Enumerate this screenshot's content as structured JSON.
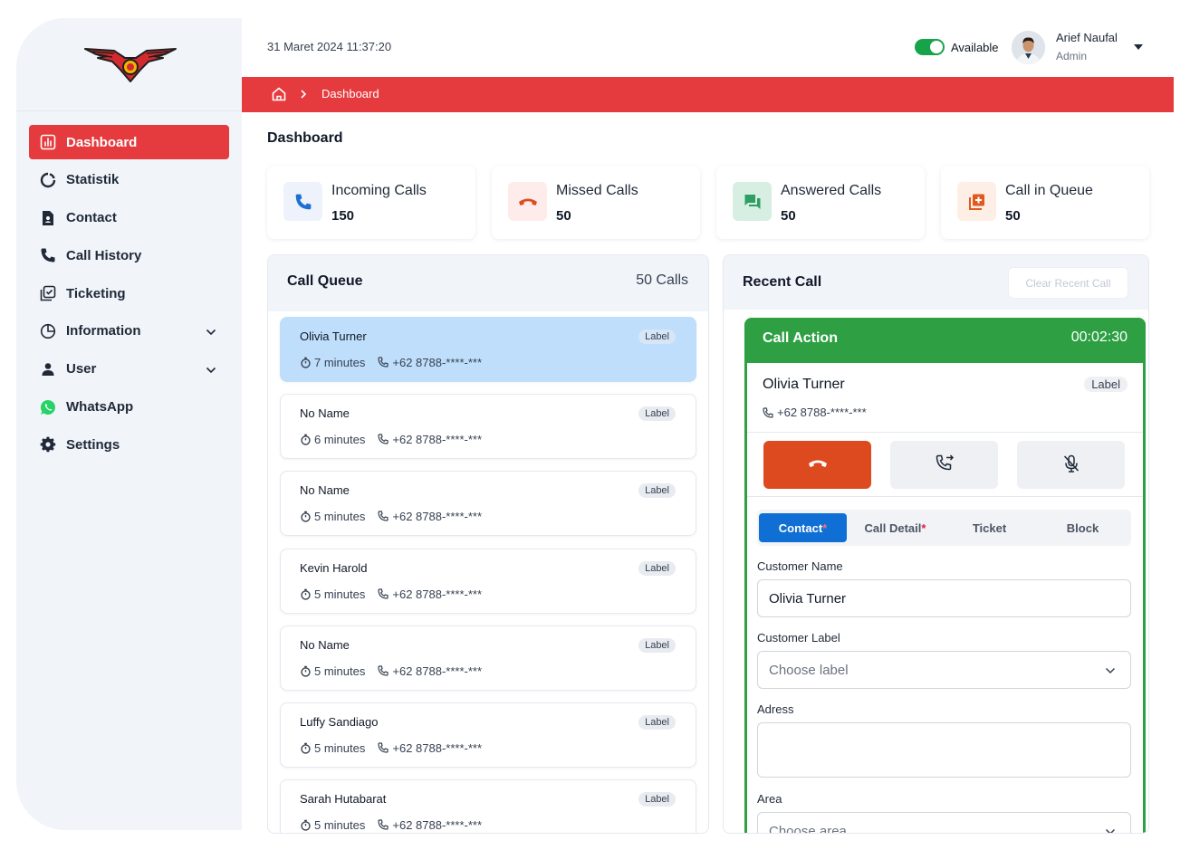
{
  "header": {
    "datetime": "31 Maret 2024 11:37:20",
    "status_label": "Available",
    "user_name": "Arief Naufal",
    "user_role": "Admin"
  },
  "sidebar": {
    "items": [
      {
        "label": "Dashboard",
        "icon": "dashboard-chart-icon",
        "active": true
      },
      {
        "label": "Statistik",
        "icon": "circle-chart-icon"
      },
      {
        "label": "Contact",
        "icon": "contact-document-icon"
      },
      {
        "label": "Call History",
        "icon": "phone-icon"
      },
      {
        "label": "Ticketing",
        "icon": "ticket-check-icon"
      },
      {
        "label": "Information",
        "icon": "pie-chart-icon",
        "expandable": true
      },
      {
        "label": "User",
        "icon": "user-icon",
        "expandable": true
      },
      {
        "label": "WhatsApp",
        "icon": "whatsapp-icon"
      },
      {
        "label": "Settings",
        "icon": "gear-icon"
      }
    ]
  },
  "breadcrumb": {
    "current": "Dashboard"
  },
  "page": {
    "title": "Dashboard"
  },
  "stats": [
    {
      "label": "Incoming Calls",
      "value": "150",
      "icon": "incoming-phone-icon",
      "color": "#1d6fd1"
    },
    {
      "label": "Missed Calls",
      "value": "50",
      "icon": "hang-up-phone-icon",
      "color": "#e04a1f"
    },
    {
      "label": "Answered Calls",
      "value": "50",
      "icon": "chat-bubbles-icon",
      "color": "#2e9e63"
    },
    {
      "label": "Call in Queue",
      "value": "50",
      "icon": "queue-add-icon",
      "color": "#e0591f"
    }
  ],
  "queue": {
    "title": "Call Queue",
    "count": "50 Calls",
    "items": [
      {
        "name": "Olivia Turner",
        "label": "Label",
        "wait": "7 minutes",
        "phone": "+62 8788-****-***"
      },
      {
        "name": "No Name",
        "label": "Label",
        "wait": "6 minutes",
        "phone": "+62 8788-****-***"
      },
      {
        "name": "No Name",
        "label": "Label",
        "wait": "5 minutes",
        "phone": "+62 8788-****-***"
      },
      {
        "name": "Kevin Harold",
        "label": "Label",
        "wait": "5 minutes",
        "phone": "+62 8788-****-***"
      },
      {
        "name": "No Name",
        "label": "Label",
        "wait": "5 minutes",
        "phone": "+62 8788-****-***"
      },
      {
        "name": "Luffy Sandiago",
        "label": "Label",
        "wait": "5 minutes",
        "phone": "+62 8788-****-***"
      },
      {
        "name": "Sarah Hutabarat",
        "label": "Label",
        "wait": "5 minutes",
        "phone": "+62 8788-****-***"
      }
    ]
  },
  "recent": {
    "title": "Recent Call",
    "clear_label": "Clear Recent Call"
  },
  "call_action": {
    "title": "Call Action",
    "timer": "00:02:30",
    "caller_name": "Olivia Turner",
    "caller_label": "Label",
    "caller_phone": "+62 8788-****-***",
    "tabs": [
      {
        "label": "Contact",
        "required": "*"
      },
      {
        "label": "Call Detail",
        "required": "*"
      },
      {
        "label": "Ticket",
        "required": ""
      },
      {
        "label": "Block",
        "required": ""
      }
    ],
    "form": {
      "name_label": "Customer Name",
      "name_value": "Olivia Turner",
      "label_label": "Customer Label",
      "label_placeholder": "Choose label",
      "address_label": "Adress",
      "address_value": "",
      "area_label": "Area",
      "area_placeholder": "Choose area"
    }
  },
  "colors": {
    "brand_red": "#e63b3e",
    "action_green": "#2ea043",
    "tab_blue": "#0f6fd4",
    "selected_row": "#bfdefb"
  }
}
